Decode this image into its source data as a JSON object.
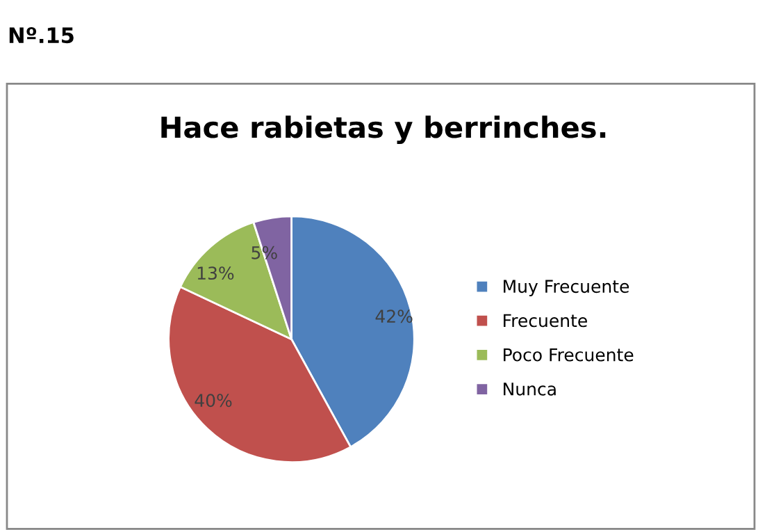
{
  "chart_data": {
    "type": "pie",
    "title": "Hace rabietas y berrinches.",
    "categories": [
      "Muy Frecuente",
      "Frecuente",
      "Poco Frecuente",
      "Nunca"
    ],
    "values": [
      42,
      40,
      13,
      5
    ],
    "colors": [
      "#4f81bd",
      "#c0504d",
      "#9bbb59",
      "#8064a2"
    ],
    "value_labels": [
      "42%",
      "40%",
      "13%",
      "5%"
    ],
    "legend": "right",
    "annotations": [
      "Nº.15"
    ]
  }
}
